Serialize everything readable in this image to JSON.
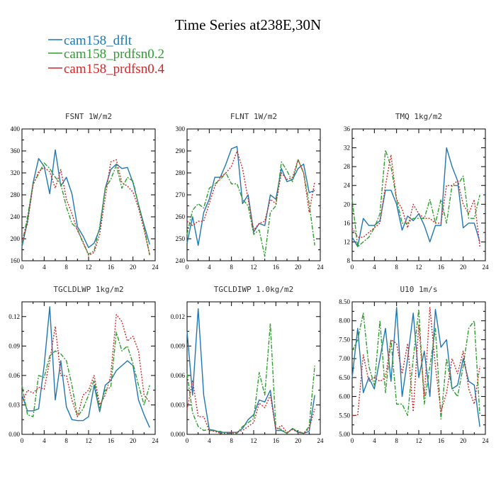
{
  "title": "Time Series at238E,30N",
  "legend": [
    {
      "name": "cam158_dflt",
      "color": "#1f77b4"
    },
    {
      "name": "cam158_prdfsn0.2",
      "color": "#2ca02c"
    },
    {
      "name": "cam158_prdfsn0.4",
      "color": "#d62728"
    }
  ],
  "chart_data": [
    {
      "type": "line",
      "title": "FSNT",
      "units": "1W/m2",
      "xlim": [
        0,
        24
      ],
      "xticks": [
        0,
        4,
        8,
        12,
        16,
        20,
        24
      ],
      "ylim": [
        160,
        400
      ],
      "yticks": [
        160,
        200,
        240,
        280,
        320,
        360,
        400
      ],
      "yticklabels": [
        "160",
        "200",
        "240",
        "280",
        "320",
        "360",
        "400"
      ],
      "x": [
        0,
        1,
        2,
        3,
        4,
        5,
        6,
        7,
        8,
        9,
        10,
        11,
        12,
        13,
        14,
        15,
        16,
        17,
        18,
        19,
        20,
        21,
        22,
        23
      ],
      "series": [
        {
          "name": "cam158_dflt",
          "values": [
            185,
            232,
            302,
            346,
            332,
            282,
            362,
            296,
            312,
            282,
            222,
            205,
            184,
            192,
            218,
            292,
            326,
            336,
            328,
            330,
            302,
            262,
            225,
            190
          ]
        },
        {
          "name": "cam158_prdfsn0.2",
          "values": [
            190,
            240,
            300,
            318,
            338,
            328,
            312,
            300,
            258,
            228,
            218,
            192,
            172,
            178,
            222,
            292,
            308,
            334,
            292,
            312,
            305,
            262,
            222,
            170
          ]
        },
        {
          "name": "cam158_prdfsn0.4",
          "values": [
            195,
            228,
            298,
            322,
            330,
            322,
            292,
            326,
            272,
            246,
            215,
            195,
            170,
            175,
            208,
            275,
            340,
            344,
            302,
            296,
            285,
            256,
            216,
            172
          ]
        }
      ]
    },
    {
      "type": "line",
      "title": "FLNT",
      "units": "1W/m2",
      "xlim": [
        0,
        24
      ],
      "xticks": [
        0,
        4,
        8,
        12,
        16,
        20,
        24
      ],
      "ylim": [
        240,
        300
      ],
      "yticks": [
        240,
        250,
        260,
        270,
        280,
        290,
        300
      ],
      "yticklabels": [
        "240",
        "250",
        "260",
        "270",
        "280",
        "290",
        "300"
      ],
      "x": [
        0,
        1,
        2,
        3,
        4,
        5,
        6,
        7,
        8,
        9,
        10,
        11,
        12,
        13,
        14,
        15,
        16,
        17,
        18,
        19,
        20,
        21,
        22,
        23
      ],
      "series": [
        {
          "name": "cam158_dflt",
          "values": [
            248,
            260,
            247,
            262,
            268,
            278,
            278,
            284,
            291,
            292,
            266,
            270,
            253,
            257,
            256,
            270,
            268,
            282,
            276,
            277,
            282,
            284,
            271,
            272
          ]
        },
        {
          "name": "cam158_prdfsn0.2",
          "values": [
            252,
            263,
            266,
            264,
            273,
            275,
            277,
            280,
            275,
            275,
            268,
            265,
            252,
            254,
            242,
            262,
            265,
            285,
            281,
            276,
            286,
            280,
            266,
            247
          ]
        },
        {
          "name": "cam158_prdfsn0.4",
          "values": [
            258,
            256,
            258,
            258,
            266,
            274,
            278,
            280,
            283,
            290,
            282,
            268,
            254,
            257,
            258,
            268,
            266,
            280,
            277,
            278,
            286,
            280,
            262,
            276
          ]
        }
      ]
    },
    {
      "type": "line",
      "title": "TMQ",
      "units": "1kg/m2",
      "xlim": [
        0,
        24
      ],
      "xticks": [
        0,
        4,
        8,
        12,
        16,
        20,
        24
      ],
      "ylim": [
        8,
        36
      ],
      "yticks": [
        8,
        12,
        16,
        20,
        24,
        28,
        32,
        36
      ],
      "yticklabels": [
        "8",
        "12",
        "16",
        "20",
        "24",
        "28",
        "32",
        "36"
      ],
      "x": [
        0,
        1,
        2,
        3,
        4,
        5,
        6,
        7,
        8,
        9,
        10,
        11,
        12,
        13,
        14,
        15,
        16,
        17,
        18,
        19,
        20,
        21,
        22,
        23
      ],
      "series": [
        {
          "name": "cam158_dflt",
          "values": [
            13,
            11,
            17,
            15.5,
            15.5,
            16.5,
            23,
            23,
            20,
            14.5,
            17.5,
            16.5,
            18,
            15.5,
            12,
            15.5,
            15.5,
            32,
            28,
            25,
            15,
            16,
            16,
            12
          ]
        },
        {
          "name": "cam158_prdfsn0.2",
          "values": [
            21,
            11,
            12,
            13,
            15,
            18,
            31.5,
            28,
            21,
            16,
            16,
            17,
            17,
            17,
            21,
            16,
            21,
            16,
            24,
            24,
            26,
            17,
            17,
            22
          ]
        },
        {
          "name": "cam158_prdfsn0.4",
          "values": [
            15,
            13,
            13,
            14,
            15,
            16,
            24,
            30.5,
            21,
            19,
            15,
            20,
            18,
            17,
            17,
            16,
            16,
            24,
            24,
            25,
            20,
            18,
            21,
            11
          ]
        }
      ]
    },
    {
      "type": "line",
      "title": "TGCLDLWP",
      "units": "1kg/m2",
      "xlim": [
        0,
        24
      ],
      "xticks": [
        0,
        4,
        8,
        12,
        16,
        20,
        24
      ],
      "ylim": [
        0,
        0.135
      ],
      "yticks": [
        0,
        0.03,
        0.06,
        0.09,
        0.12
      ],
      "yticklabels": [
        "0.00",
        "0.03",
        "0.06",
        "0.09",
        "0.12"
      ],
      "x": [
        0,
        1,
        2,
        3,
        4,
        5,
        6,
        7,
        8,
        9,
        10,
        11,
        12,
        13,
        14,
        15,
        16,
        17,
        18,
        19,
        20,
        21,
        22,
        23
      ],
      "series": [
        {
          "name": "cam158_dflt",
          "values": [
            0.04,
            0.024,
            0.024,
            0.026,
            0.07,
            0.13,
            0.035,
            0.075,
            0.028,
            0.015,
            0.014,
            0.014,
            0.018,
            0.05,
            0.023,
            0.05,
            0.055,
            0.065,
            0.07,
            0.075,
            0.07,
            0.035,
            0.02,
            0.007
          ]
        },
        {
          "name": "cam158_prdfsn0.2",
          "values": [
            0.05,
            0.02,
            0.018,
            0.06,
            0.058,
            0.08,
            0.085,
            0.082,
            0.075,
            0.05,
            0.018,
            0.026,
            0.04,
            0.055,
            0.026,
            0.045,
            0.048,
            0.104,
            0.085,
            0.09,
            0.072,
            0.05,
            0.03,
            0.05
          ]
        },
        {
          "name": "cam158_prdfsn0.4",
          "values": [
            0.032,
            0.045,
            0.042,
            0.048,
            0.046,
            0.075,
            0.11,
            0.06,
            0.06,
            0.035,
            0.018,
            0.04,
            0.045,
            0.06,
            0.03,
            0.04,
            0.06,
            0.122,
            0.115,
            0.095,
            0.1,
            0.085,
            0.04,
            0.033
          ]
        }
      ]
    },
    {
      "type": "line",
      "title": "TGCLDIWP",
      "units": "1.0kg/m2",
      "xlim": [
        0,
        24
      ],
      "xticks": [
        0,
        4,
        8,
        12,
        16,
        20,
        24
      ],
      "ylim": [
        0,
        0.0135
      ],
      "yticks": [
        0,
        0.003,
        0.006,
        0.009,
        0.012
      ],
      "yticklabels": [
        "0.000",
        "0.003",
        "0.006",
        "0.009",
        "0.012"
      ],
      "x": [
        0,
        1,
        2,
        3,
        4,
        5,
        6,
        7,
        8,
        9,
        10,
        11,
        12,
        13,
        14,
        15,
        16,
        17,
        18,
        19,
        20,
        21,
        22,
        23
      ],
      "series": [
        {
          "name": "cam158_dflt",
          "values": [
            0.0105,
            0.004,
            0.0128,
            0.004,
            0.0005,
            0.0004,
            0.0002,
            0.0002,
            0.0002,
            0.0002,
            0.0006,
            0.0015,
            0.002,
            0.0035,
            0.0033,
            0.0045,
            0.0004,
            0.0004,
            0.0001,
            0.0006,
            0.0002,
            0.0001,
            0.0003,
            0.004
          ]
        },
        {
          "name": "cam158_prdfsn0.2",
          "values": [
            0.0062,
            0.0022,
            0.0008,
            0.0004,
            0.0005,
            0.0003,
            0.0003,
            0.0001,
            0.0001,
            0.0001,
            0.0008,
            0.0012,
            0.0016,
            0.0063,
            0.004,
            0.0113,
            0.0007,
            0.0005,
            0.0001,
            0.0006,
            0.0003,
            0.0001,
            0.0008,
            0.007
          ]
        },
        {
          "name": "cam158_prdfsn0.4",
          "values": [
            0.0025,
            0.0055,
            0.0018,
            0.0018,
            0.0004,
            0.0003,
            0.0001,
            0.0001,
            0.0002,
            0.0002,
            0.0004,
            0.0008,
            0.0012,
            0.0032,
            0.0027,
            0.004,
            0.0005,
            0.0009,
            0.0002,
            0.0005,
            0.0002,
            0.0001,
            0.0006,
            0.0026
          ]
        }
      ]
    },
    {
      "type": "line",
      "title": "U10",
      "units": "1m/s",
      "xlim": [
        0,
        24
      ],
      "xticks": [
        0,
        4,
        8,
        12,
        16,
        20,
        24
      ],
      "ylim": [
        5,
        8.5
      ],
      "yticks": [
        5,
        5.5,
        6,
        6.5,
        7,
        7.5,
        8,
        8.5
      ],
      "yticklabels": [
        "5.00",
        "5.50",
        "6.00",
        "6.50",
        "7.00",
        "7.50",
        "8.00",
        "8.50"
      ],
      "x": [
        0,
        1,
        2,
        3,
        4,
        5,
        6,
        7,
        8,
        9,
        10,
        11,
        12,
        13,
        14,
        15,
        16,
        17,
        18,
        19,
        20,
        21,
        22,
        23
      ],
      "series": [
        {
          "name": "cam158_dflt",
          "values": [
            6.5,
            7.8,
            6.1,
            6.5,
            6.2,
            7.0,
            7.8,
            6.4,
            8.35,
            6.0,
            7.0,
            8.2,
            6.5,
            7.2,
            6.0,
            8.3,
            7.3,
            7.5,
            6.2,
            6.3,
            7.0,
            6.4,
            6.3,
            5.2
          ]
        },
        {
          "name": "cam158_prdfsn0.2",
          "values": [
            7.2,
            7.5,
            8.2,
            6.8,
            6.3,
            8.0,
            6.1,
            7.5,
            5.8,
            5.8,
            5.5,
            7.0,
            8.3,
            5.8,
            6.8,
            7.8,
            5.4,
            7.0,
            6.2,
            6.0,
            6.8,
            7.8,
            8.0,
            5.5
          ]
        },
        {
          "name": "cam158_prdfsn0.4",
          "values": [
            5.5,
            5.5,
            7.1,
            6.4,
            6.5,
            6.4,
            6.5,
            7.5,
            7.4,
            6.6,
            7.4,
            5.6,
            7.9,
            6.0,
            8.35,
            6.8,
            5.6,
            6.1,
            7.0,
            6.6,
            7.2,
            6.2,
            5.8,
            6.8
          ]
        }
      ]
    }
  ]
}
